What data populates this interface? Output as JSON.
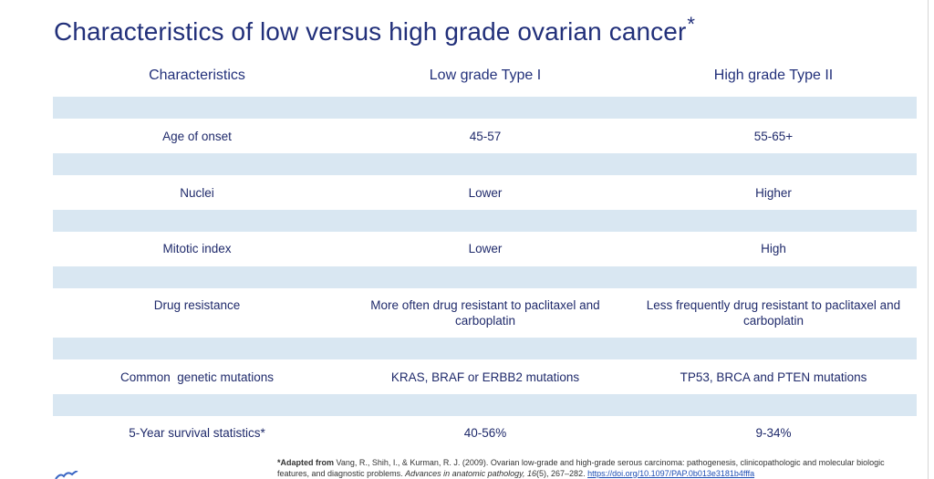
{
  "title": {
    "text": "Characteristics of low versus high grade ovarian cancer",
    "marker": "*"
  },
  "table": {
    "headers": [
      "Characteristics",
      "Low grade  Type I",
      "High grade Type II"
    ],
    "rows": [
      {
        "characteristic": "Age of onset",
        "low": "45-57",
        "high": "55-65+"
      },
      {
        "characteristic": "Nuclei",
        "low": "Lower",
        "high": "Higher"
      },
      {
        "characteristic": "Mitotic index",
        "low": "Lower",
        "high": "High"
      },
      {
        "characteristic": "Drug resistance",
        "low": "More often drug resistant to paclitaxel and carboplatin",
        "high": "Less frequently drug resistant to paclitaxel and carboplatin"
      },
      {
        "characteristic": "Common  genetic mutations",
        "low": "KRAS, BRAF or ERBB2 mutations",
        "high": "TP53, BRCA and PTEN mutations"
      },
      {
        "characteristic": "5-Year survival statistics*",
        "low": "40-56%",
        "high": "9-34%"
      }
    ],
    "band_color": "#d9e7f2"
  },
  "footnote": {
    "lead": "*Adapted from",
    "citation": " Vang, R., Shih, I., & Kurman, R. J. (2009). Ovarian low-grade and high-grade serous carcinoma: pathogenesis, clinicopathologic and molecular biologic features, and diagnostic problems. ",
    "journal": "Advances in anatomic pathology, 16",
    "pages": "(5), 267–282. ",
    "doi": "https://doi.org/10.1097/PAP.0b013e3181b4fffa"
  },
  "colors": {
    "title": "#22307a",
    "text": "#1f2a6b",
    "link": "#1f4fb5"
  }
}
